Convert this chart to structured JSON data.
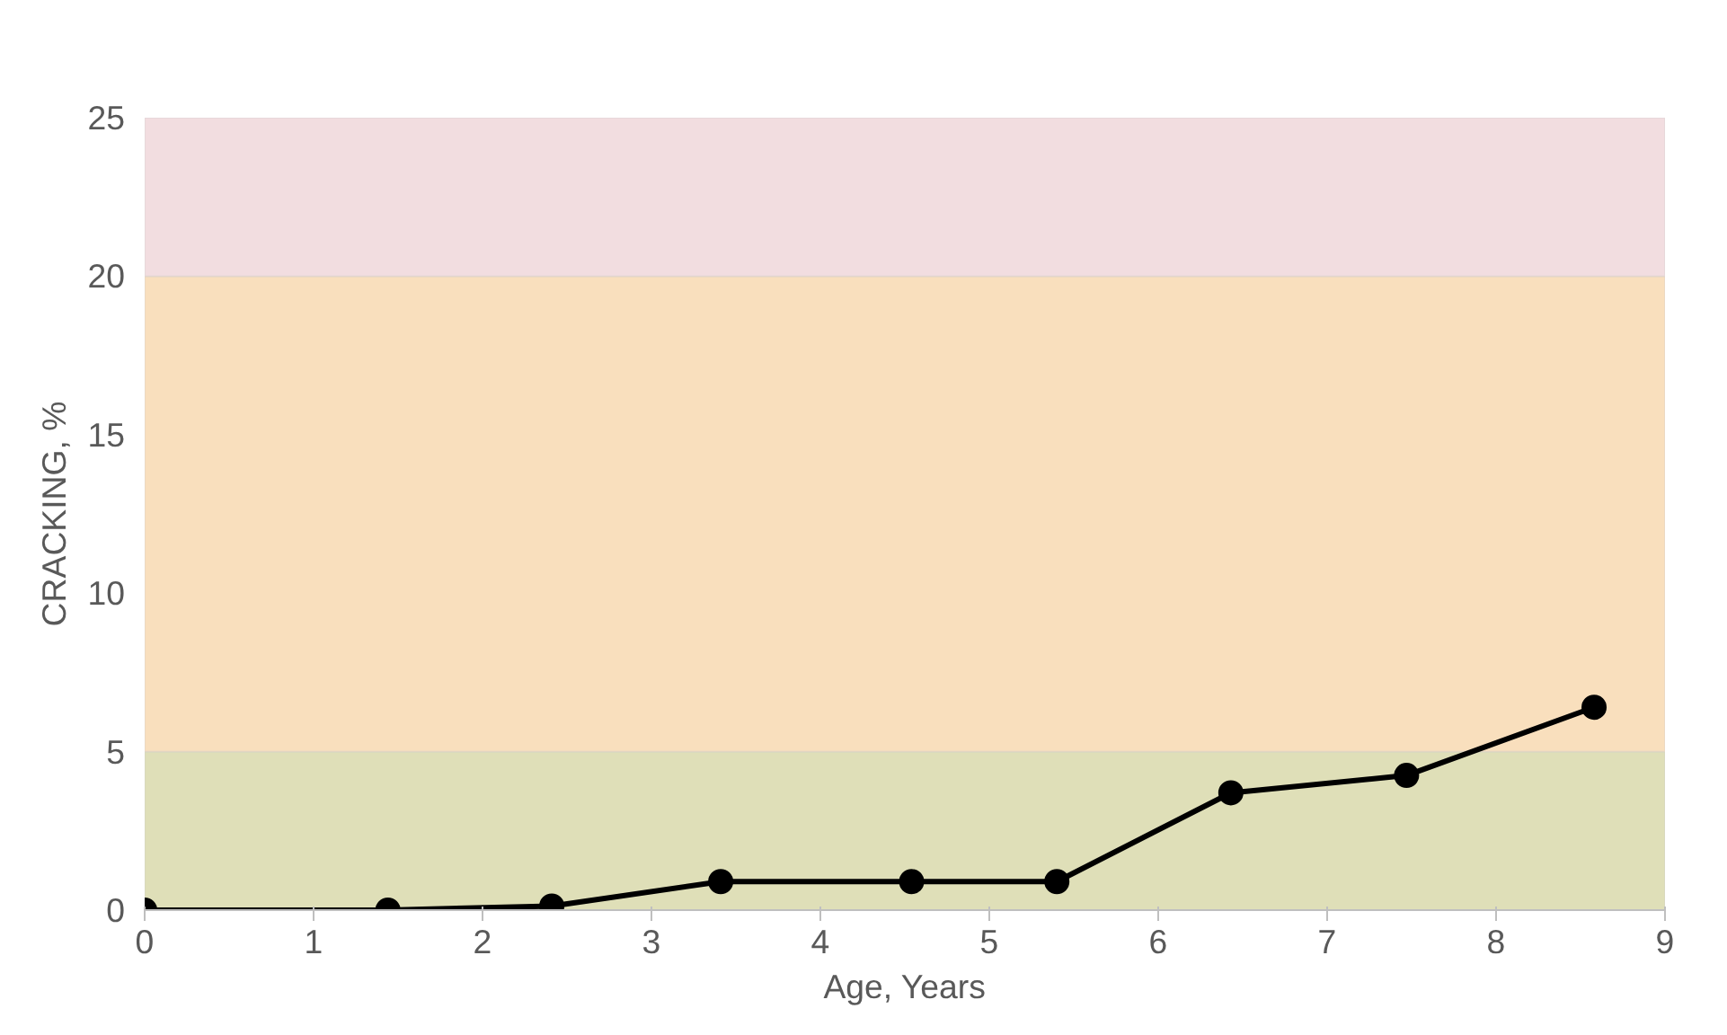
{
  "chart_data": {
    "type": "line",
    "xlabel": "Age, Years",
    "ylabel": "CRACKING, %",
    "x": [
      0,
      1.44,
      2.41,
      3.41,
      4.54,
      5.4,
      6.43,
      7.47,
      8.58
    ],
    "series": [
      {
        "color": "#000000",
        "values": [
          0,
          0,
          0.13,
          0.9,
          0.9,
          0.9,
          3.7,
          4.25,
          6.4
        ]
      }
    ],
    "xlim": [
      0,
      9
    ],
    "xticks": [
      0,
      1,
      2,
      3,
      4,
      5,
      6,
      7,
      8,
      9
    ],
    "ylim": [
      0,
      25
    ],
    "yticks": [
      0,
      5,
      10,
      15,
      20,
      25
    ],
    "bands": [
      {
        "axis": "y",
        "from": 0,
        "to": 5,
        "color": "#dfdfb8"
      },
      {
        "axis": "y",
        "from": 5,
        "to": 20,
        "color": "#f9dfbd"
      },
      {
        "axis": "y",
        "from": 20,
        "to": 25,
        "color": "#f2dde0"
      }
    ],
    "grid": "y",
    "marker": "circle",
    "line_style": "solid"
  }
}
